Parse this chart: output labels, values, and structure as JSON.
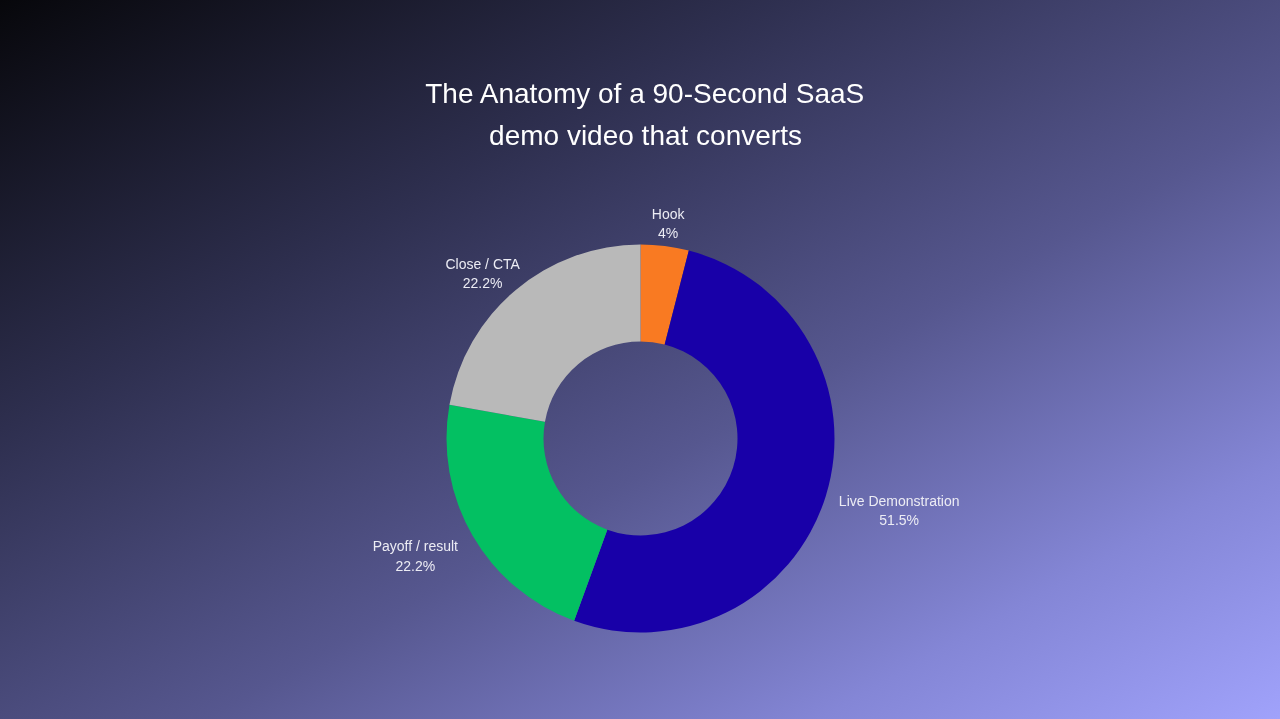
{
  "chart_data": {
    "type": "donut",
    "title": "The Anatomy of a 90-Second SaaS demo video that converts",
    "categories": [
      "Hook",
      "Live Demonstration",
      "Payoff / result",
      "Close / CTA"
    ],
    "values": [
      4,
      51.5,
      22.2,
      22.2
    ],
    "value_labels": [
      "4%",
      "51.5%",
      "22.2%",
      "22.2%"
    ],
    "colors": [
      "#f97a22",
      "#1800a8",
      "#03c062",
      "#b9b9b9"
    ]
  }
}
